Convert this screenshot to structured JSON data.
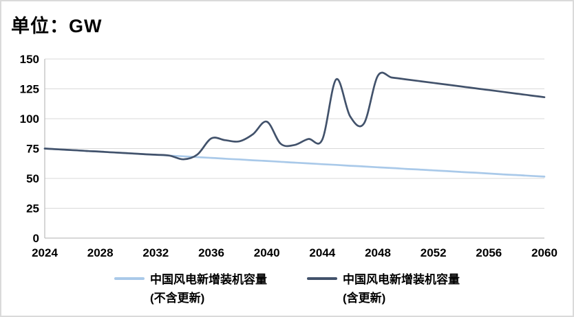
{
  "header": {
    "title": "单位：GW"
  },
  "colors": {
    "background": "#FFFFFF",
    "frame_border": "#DADADA",
    "gridline": "#D9D9D9",
    "axis_line": "#BFBFBF",
    "text": "#000000",
    "series_excl_renewal": "#A9C9E9",
    "series_incl_renewal": "#42526B"
  },
  "chart_data": {
    "type": "line",
    "title": "单位：GW",
    "xlabel": "",
    "ylabel": "",
    "xlim": [
      2024,
      2060
    ],
    "ylim": [
      0,
      150
    ],
    "xticks": [
      2024,
      2028,
      2032,
      2036,
      2040,
      2044,
      2048,
      2052,
      2056,
      2060
    ],
    "yticks": [
      0,
      25,
      50,
      75,
      100,
      125,
      150
    ],
    "grid": "horizontal-only",
    "legend_position": "bottom",
    "line_style": "smoothed",
    "x": [
      2024,
      2025,
      2026,
      2027,
      2028,
      2029,
      2030,
      2031,
      2032,
      2033,
      2034,
      2035,
      2036,
      2037,
      2038,
      2039,
      2040,
      2041,
      2042,
      2043,
      2044,
      2045,
      2046,
      2047,
      2048,
      2049,
      2050,
      2051,
      2052,
      2053,
      2054,
      2055,
      2056,
      2057,
      2058,
      2059,
      2060
    ],
    "series": [
      {
        "id": "excl-renewal",
        "name": "中国风电新增装机容量 (不含更新)",
        "label_line1": "中国风电新增装机容量",
        "label_line2": "(不含更新)",
        "color": "#A9C9E9",
        "values": [
          75,
          74.3,
          73.7,
          73,
          72.4,
          71.7,
          71.1,
          70.4,
          69.8,
          69.1,
          68.5,
          67.8,
          67.2,
          66.5,
          65.9,
          65.2,
          64.6,
          63.9,
          63.2,
          62.6,
          61.9,
          61.3,
          60.6,
          60,
          59.3,
          58.7,
          58,
          57.4,
          56.7,
          56.1,
          55.4,
          54.8,
          54.1,
          53.4,
          52.8,
          52.1,
          51.5
        ]
      },
      {
        "id": "incl-renewal",
        "name": "中国风电新增装机容量 (含更新)",
        "label_line1": "中国风电新增装机容量",
        "label_line2": "(含更新)",
        "color": "#42526B",
        "values": [
          75,
          74.3,
          73.7,
          73,
          72.4,
          71.7,
          71.1,
          70.4,
          69.8,
          69.1,
          66,
          70,
          83.5,
          82,
          81,
          87,
          97.5,
          79,
          78,
          83,
          82.5,
          133,
          102,
          96,
          136,
          134.5,
          133,
          131.5,
          130,
          128.5,
          127,
          125.5,
          124,
          122.5,
          121,
          119.5,
          118
        ]
      }
    ]
  }
}
